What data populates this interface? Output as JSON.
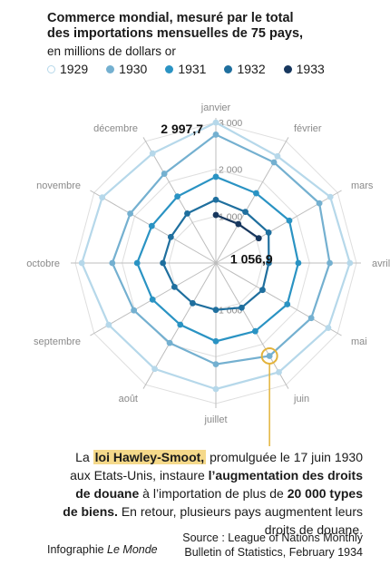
{
  "header": {
    "title_line1": "Commerce mondial, mesuré par le total",
    "title_line2_bold": "des importations mensuelles de 75 pays",
    "title_line2_tail": ",",
    "subtitle": "en millions de dollars or"
  },
  "chart_data": {
    "type": "radar",
    "months": [
      "janvier",
      "février",
      "mars",
      "avril",
      "mai",
      "juin",
      "juillet",
      "août",
      "septembre",
      "octobre",
      "novembre",
      "décembre"
    ],
    "radial_ticks": [
      "1 000",
      "2 000",
      "3 000"
    ],
    "rmax": 3000,
    "series": [
      {
        "name": "1929",
        "color": "#b6d8ea",
        "values": [
          2997.7,
          2630,
          2820,
          2860,
          2770,
          2690,
          2690,
          2610,
          2640,
          2860,
          2800,
          2700
        ]
      },
      {
        "name": "1930",
        "color": "#74b0d0",
        "values": [
          2740,
          2480,
          2550,
          2430,
          2350,
          2290,
          2160,
          1970,
          2020,
          2210,
          2110,
          2200
        ]
      },
      {
        "name": "1931",
        "color": "#2a93c3",
        "values": [
          1840,
          1720,
          1810,
          1760,
          1760,
          1680,
          1670,
          1520,
          1560,
          1680,
          1580,
          1640
        ]
      },
      {
        "name": "1932",
        "color": "#1f6f9e",
        "values": [
          1350,
          1260,
          1300,
          1130,
          1150,
          1100,
          1000,
          990,
          1020,
          1130,
          1110,
          1220
        ]
      },
      {
        "name": "1933",
        "color": "#17375e",
        "values": [
          1025,
          960,
          1056.9
        ]
      }
    ],
    "labels": {
      "max_label": "2 997,7",
      "min_label": "1 056,9"
    }
  },
  "annotation": {
    "p1": "La ",
    "law": "loi Hawley-Smoot,",
    "p2": " promulguée le 17 juin 1930 aux Etats-Unis, instaure ",
    "b1": "l’augmentation des droits de douane",
    "p3": " à l’importation de plus de ",
    "b2": "20 000 types de biens.",
    "p4": " En retour, plusieurs pays augmentent leurs droits de douane."
  },
  "footer": {
    "credit_prefix": "Infographie ",
    "credit_name": "Le Monde",
    "source_line1": "Source : League of Nations Monthly",
    "source_line2": "Bulletin of Statistics, February 1934"
  },
  "colors": {
    "axis": "#bdbdbd",
    "grid": "#dedede",
    "highlight": "#e3b33a",
    "label": "#8a8a8a"
  }
}
